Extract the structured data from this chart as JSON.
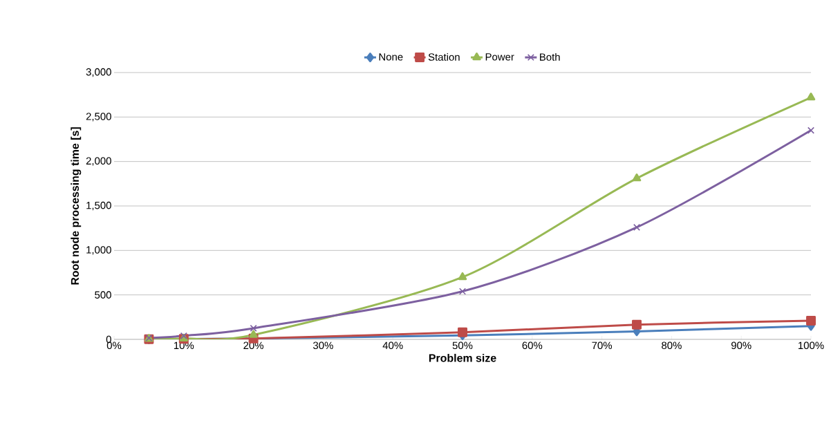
{
  "chart_data": {
    "type": "line",
    "xlabel": "Problem size",
    "ylabel": "Root node processing time [s]",
    "x": [
      5,
      10,
      20,
      50,
      75,
      100
    ],
    "series": [
      {
        "name": "None",
        "color": "#4a7ebb",
        "marker": "diamond",
        "values": [
          1,
          3,
          10,
          45,
          90,
          150
        ]
      },
      {
        "name": "Station",
        "color": "#be4b48",
        "marker": "square",
        "values": [
          2,
          5,
          10,
          80,
          165,
          210
        ]
      },
      {
        "name": "Power",
        "color": "#98b954",
        "marker": "triangle",
        "values": [
          5,
          10,
          50,
          700,
          1810,
          2720
        ]
      },
      {
        "name": "Both",
        "color": "#7d60a0",
        "marker": "cross",
        "values": [
          15,
          40,
          125,
          540,
          1260,
          2350
        ]
      }
    ],
    "xlim": [
      0,
      100
    ],
    "xticks": [
      {
        "value": 0,
        "label": "0%"
      },
      {
        "value": 10,
        "label": "10%"
      },
      {
        "value": 20,
        "label": "20%"
      },
      {
        "value": 30,
        "label": "30%"
      },
      {
        "value": 40,
        "label": "40%"
      },
      {
        "value": 50,
        "label": "50%"
      },
      {
        "value": 60,
        "label": "60%"
      },
      {
        "value": 70,
        "label": "70%"
      },
      {
        "value": 80,
        "label": "80%"
      },
      {
        "value": 90,
        "label": "90%"
      },
      {
        "value": 100,
        "label": "100%"
      }
    ],
    "ylim": [
      0,
      3000
    ],
    "yticks": [
      0,
      500,
      {
        "value": 1000,
        "label": "1,000"
      },
      {
        "value": 1500,
        "label": "1,500"
      },
      {
        "value": 2000,
        "label": "2,000"
      },
      {
        "value": 2500,
        "label": "2,500"
      },
      {
        "value": 3000,
        "label": "3,000"
      }
    ],
    "grid": "y",
    "legend": "top",
    "line_style": "solid"
  }
}
